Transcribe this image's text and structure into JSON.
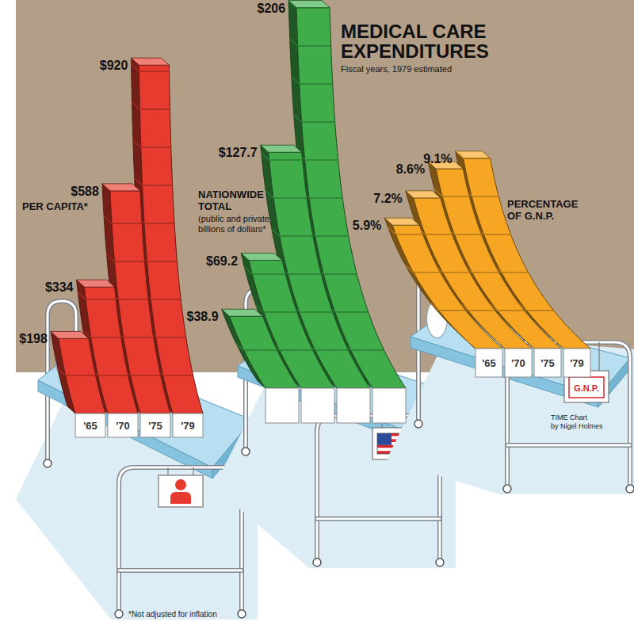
{
  "header": {
    "title": "MEDICAL CARE EXPENDITURES",
    "subtitle": "Fiscal years, 1979 estimated"
  },
  "chart_data": [
    {
      "type": "bar",
      "title": "PER CAPITA*",
      "categories": [
        "'65",
        "'70",
        "'75",
        "'79"
      ],
      "values": [
        198,
        334,
        588,
        920
      ],
      "value_labels": [
        "$198",
        "$334",
        "$588",
        "$920"
      ],
      "color": "#e63b2e",
      "ylim": [
        0,
        1000
      ],
      "data_labels": true,
      "tick_labels": "x"
    },
    {
      "type": "bar",
      "title": "NATIONWIDE TOTAL",
      "subtitle": "(public and private) in billions of dollars*",
      "categories": [
        null,
        null,
        null,
        null
      ],
      "values": [
        38.9,
        69.2,
        127.7,
        206
      ],
      "value_labels": [
        "$38.9",
        "$69.2",
        "$127.7",
        "$206"
      ],
      "color": "#3fae4a",
      "ylim": [
        0,
        220
      ],
      "data_labels": true,
      "tick_labels": false
    },
    {
      "type": "bar",
      "title": "PERCENTAGE OF G.N.P.",
      "categories": [
        "'65",
        "'70",
        "'75",
        "'79"
      ],
      "values": [
        5.9,
        7.2,
        8.6,
        9.1
      ],
      "value_labels": [
        "5.9%",
        "7.2%",
        "8.6%",
        "9.1%"
      ],
      "color": "#f6a623",
      "ylim": [
        0,
        10
      ],
      "data_labels": true,
      "tick_labels": "x",
      "annotations": [
        "G.N.P."
      ]
    }
  ],
  "notes": {
    "footnote": "*Not adjusted for inflation",
    "credit": [
      "TIME Chart",
      "by Nigel Holmes"
    ]
  }
}
